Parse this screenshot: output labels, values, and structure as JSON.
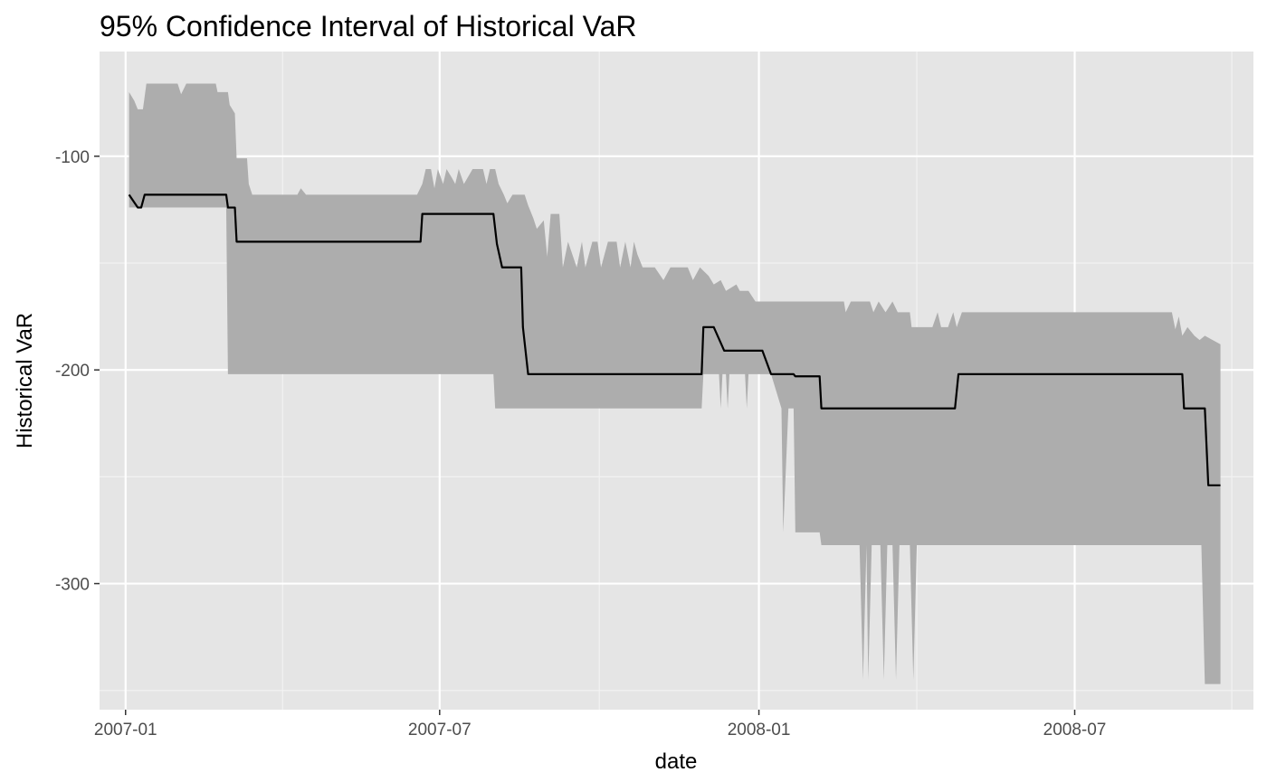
{
  "chart_data": {
    "type": "area",
    "title": "95% Confidence Interval of Historical VaR",
    "xlabel": "date",
    "ylabel": "Historical VaR",
    "x_ticks": [
      "2007-01",
      "2007-07",
      "2008-01",
      "2008-07"
    ],
    "y_ticks": [
      -100,
      -200,
      -300
    ],
    "xlim": [
      "2006-12-17",
      "2008-10-12"
    ],
    "ylim": [
      -359,
      -51
    ],
    "grid": true,
    "colors": {
      "panel": "#e5e5e5",
      "grid_major": "#ffffff",
      "grid_minor": "#f2f2f2",
      "ribbon": "#adadad",
      "line": "#000000"
    },
    "series": [
      {
        "role": "var-line",
        "points": [
          [
            "2007-01-03",
            -118
          ],
          [
            "2007-01-08",
            -124
          ],
          [
            "2007-01-10",
            -124
          ],
          [
            "2007-01-12",
            -118
          ],
          [
            "2007-02-28",
            -118
          ],
          [
            "2007-03-01",
            -124
          ],
          [
            "2007-03-05",
            -124
          ],
          [
            "2007-03-06",
            -140
          ],
          [
            "2007-06-20",
            -140
          ],
          [
            "2007-06-21",
            -127
          ],
          [
            "2007-08-01",
            -127
          ],
          [
            "2007-08-03",
            -141
          ],
          [
            "2007-08-06",
            -152
          ],
          [
            "2007-08-17",
            -152
          ],
          [
            "2007-08-18",
            -180
          ],
          [
            "2007-08-21",
            -202
          ],
          [
            "2007-11-29",
            -202
          ],
          [
            "2007-11-30",
            -180
          ],
          [
            "2007-12-06",
            -180
          ],
          [
            "2007-12-12",
            -191
          ],
          [
            "2008-01-03",
            -191
          ],
          [
            "2008-01-08",
            -202
          ],
          [
            "2008-01-21",
            -202
          ],
          [
            "2008-01-22",
            -203
          ],
          [
            "2008-02-05",
            -203
          ],
          [
            "2008-02-06",
            -218
          ],
          [
            "2008-04-23",
            -218
          ],
          [
            "2008-04-25",
            -202
          ],
          [
            "2008-09-01",
            -202
          ],
          [
            "2008-09-02",
            -218
          ],
          [
            "2008-09-14",
            -218
          ],
          [
            "2008-09-16",
            -254
          ],
          [
            "2008-09-23",
            -254
          ]
        ]
      },
      {
        "role": "ci-upper",
        "points": [
          [
            "2007-01-03",
            -70
          ],
          [
            "2007-01-06",
            -74
          ],
          [
            "2007-01-08",
            -78
          ],
          [
            "2007-01-11",
            -78
          ],
          [
            "2007-01-13",
            -66
          ],
          [
            "2007-01-31",
            -66
          ],
          [
            "2007-02-02",
            -71
          ],
          [
            "2007-02-05",
            -66
          ],
          [
            "2007-02-22",
            -66
          ],
          [
            "2007-02-23",
            -70
          ],
          [
            "2007-03-01",
            -70
          ],
          [
            "2007-03-02",
            -76
          ],
          [
            "2007-03-05",
            -80
          ],
          [
            "2007-03-06",
            -101
          ],
          [
            "2007-03-12",
            -101
          ],
          [
            "2007-03-13",
            -113
          ],
          [
            "2007-03-15",
            -118
          ],
          [
            "2007-04-10",
            -118
          ],
          [
            "2007-04-12",
            -115
          ],
          [
            "2007-04-15",
            -118
          ],
          [
            "2007-06-18",
            -118
          ],
          [
            "2007-06-21",
            -113
          ],
          [
            "2007-06-23",
            -106
          ],
          [
            "2007-06-26",
            -106
          ],
          [
            "2007-06-28",
            -115
          ],
          [
            "2007-06-30",
            -106
          ],
          [
            "2007-07-03",
            -113
          ],
          [
            "2007-07-05",
            -106
          ],
          [
            "2007-07-08",
            -110
          ],
          [
            "2007-07-10",
            -113
          ],
          [
            "2007-07-12",
            -106
          ],
          [
            "2007-07-15",
            -113
          ],
          [
            "2007-07-20",
            -106
          ],
          [
            "2007-07-26",
            -106
          ],
          [
            "2007-07-28",
            -113
          ],
          [
            "2007-07-30",
            -106
          ],
          [
            "2007-08-02",
            -106
          ],
          [
            "2007-08-04",
            -113
          ],
          [
            "2007-08-07",
            -118
          ],
          [
            "2007-08-09",
            -122
          ],
          [
            "2007-08-12",
            -118
          ],
          [
            "2007-08-19",
            -118
          ],
          [
            "2007-08-21",
            -123
          ],
          [
            "2007-08-24",
            -129
          ],
          [
            "2007-08-26",
            -134
          ],
          [
            "2007-08-30",
            -130
          ],
          [
            "2007-09-01",
            -147
          ],
          [
            "2007-09-03",
            -127
          ],
          [
            "2007-09-08",
            -127
          ],
          [
            "2007-09-10",
            -152
          ],
          [
            "2007-09-13",
            -140
          ],
          [
            "2007-09-18",
            -152
          ],
          [
            "2007-09-21",
            -140
          ],
          [
            "2007-09-23",
            -152
          ],
          [
            "2007-09-27",
            -140
          ],
          [
            "2007-09-30",
            -140
          ],
          [
            "2007-10-02",
            -152
          ],
          [
            "2007-10-06",
            -140
          ],
          [
            "2007-10-11",
            -140
          ],
          [
            "2007-10-13",
            -152
          ],
          [
            "2007-10-16",
            -140
          ],
          [
            "2007-10-19",
            -152
          ],
          [
            "2007-10-21",
            -140
          ],
          [
            "2007-10-23",
            -146
          ],
          [
            "2007-10-26",
            -152
          ],
          [
            "2007-11-02",
            -152
          ],
          [
            "2007-11-07",
            -158
          ],
          [
            "2007-11-11",
            -152
          ],
          [
            "2007-11-21",
            -152
          ],
          [
            "2007-11-24",
            -158
          ],
          [
            "2007-11-28",
            -152
          ],
          [
            "2007-12-03",
            -156
          ],
          [
            "2007-12-06",
            -160
          ],
          [
            "2007-12-10",
            -158
          ],
          [
            "2007-12-13",
            -163
          ],
          [
            "2007-12-19",
            -160
          ],
          [
            "2007-12-21",
            -163
          ],
          [
            "2007-12-26",
            -163
          ],
          [
            "2007-12-30",
            -168
          ],
          [
            "2008-01-03",
            -168
          ],
          [
            "2008-02-19",
            -168
          ],
          [
            "2008-02-20",
            -173
          ],
          [
            "2008-02-23",
            -168
          ],
          [
            "2008-03-05",
            -168
          ],
          [
            "2008-03-07",
            -173
          ],
          [
            "2008-03-10",
            -168
          ],
          [
            "2008-03-14",
            -173
          ],
          [
            "2008-03-18",
            -168
          ],
          [
            "2008-03-21",
            -173
          ],
          [
            "2008-03-28",
            -173
          ],
          [
            "2008-03-29",
            -180
          ],
          [
            "2008-04-10",
            -180
          ],
          [
            "2008-04-13",
            -173
          ],
          [
            "2008-04-15",
            -180
          ],
          [
            "2008-04-19",
            -180
          ],
          [
            "2008-04-22",
            -173
          ],
          [
            "2008-04-24",
            -180
          ],
          [
            "2008-04-27",
            -173
          ],
          [
            "2008-08-26",
            -173
          ],
          [
            "2008-08-28",
            -181
          ],
          [
            "2008-08-30",
            -175
          ],
          [
            "2008-09-01",
            -184
          ],
          [
            "2008-09-04",
            -180
          ],
          [
            "2008-09-08",
            -184
          ],
          [
            "2008-09-11",
            -186
          ],
          [
            "2008-09-14",
            -184
          ],
          [
            "2008-09-23",
            -188
          ]
        ]
      },
      {
        "role": "ci-lower",
        "points": [
          [
            "2007-01-03",
            -124
          ],
          [
            "2007-02-28",
            -124
          ],
          [
            "2007-03-01",
            -202
          ],
          [
            "2007-08-01",
            -202
          ],
          [
            "2007-08-02",
            -218
          ],
          [
            "2007-11-29",
            -218
          ],
          [
            "2007-11-30",
            -202
          ],
          [
            "2007-12-09",
            -202
          ],
          [
            "2007-12-10",
            -218
          ],
          [
            "2007-12-11",
            -202
          ],
          [
            "2007-12-13",
            -202
          ],
          [
            "2007-12-14",
            -218
          ],
          [
            "2007-12-15",
            -202
          ],
          [
            "2007-12-24",
            -202
          ],
          [
            "2007-12-25",
            -218
          ],
          [
            "2007-12-26",
            -202
          ],
          [
            "2008-01-08",
            -202
          ],
          [
            "2008-01-14",
            -218
          ],
          [
            "2008-01-15",
            -276
          ],
          [
            "2008-01-18",
            -218
          ],
          [
            "2008-01-21",
            -218
          ],
          [
            "2008-01-22",
            -276
          ],
          [
            "2008-02-05",
            -276
          ],
          [
            "2008-02-06",
            -282
          ],
          [
            "2008-02-28",
            -282
          ],
          [
            "2008-03-01",
            -345
          ],
          [
            "2008-03-03",
            -282
          ],
          [
            "2008-03-04",
            -345
          ],
          [
            "2008-03-06",
            -282
          ],
          [
            "2008-03-11",
            -282
          ],
          [
            "2008-03-13",
            -345
          ],
          [
            "2008-03-15",
            -282
          ],
          [
            "2008-03-18",
            -282
          ],
          [
            "2008-03-20",
            -345
          ],
          [
            "2008-03-22",
            -282
          ],
          [
            "2008-03-28",
            -282
          ],
          [
            "2008-03-30",
            -345
          ],
          [
            "2008-04-01",
            -282
          ],
          [
            "2008-09-12",
            -282
          ],
          [
            "2008-09-14",
            -347
          ],
          [
            "2008-09-23",
            -347
          ]
        ]
      }
    ]
  }
}
